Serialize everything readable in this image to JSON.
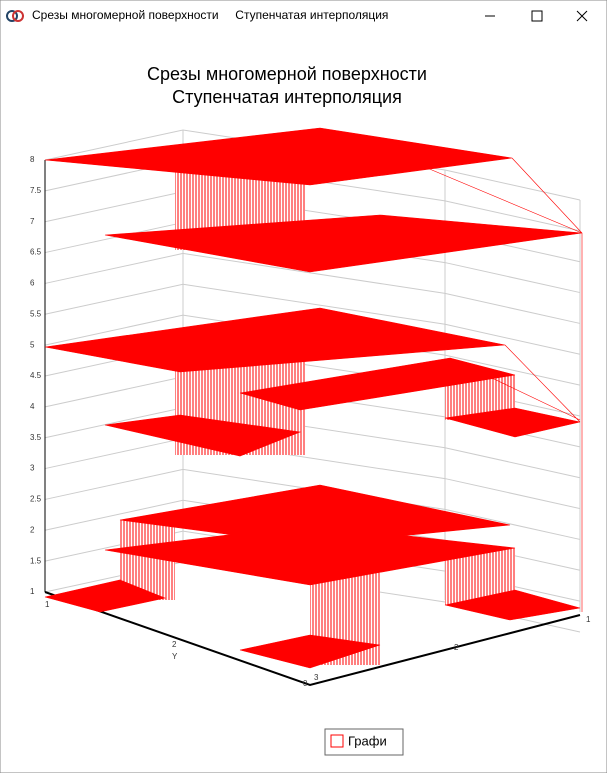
{
  "window": {
    "title": "Срезы многомерной поверхности     Ступенчатая интерполяция"
  },
  "chart": {
    "title_line1": "Срезы многомерной поверхности",
    "title_line2": "Ступенчатая интерполяция",
    "z_ticks": [
      "8",
      "7.5",
      "7",
      "6.5",
      "6",
      "5.5",
      "5",
      "4.5",
      "4",
      "3.5",
      "3",
      "2.5",
      "2",
      "1.5",
      "1"
    ],
    "y_ticks": [
      "1",
      "2",
      "3"
    ],
    "y_label": "Y",
    "x_ticks": [
      "2",
      "1"
    ],
    "x_zero": "0",
    "legend": "Графи"
  }
}
